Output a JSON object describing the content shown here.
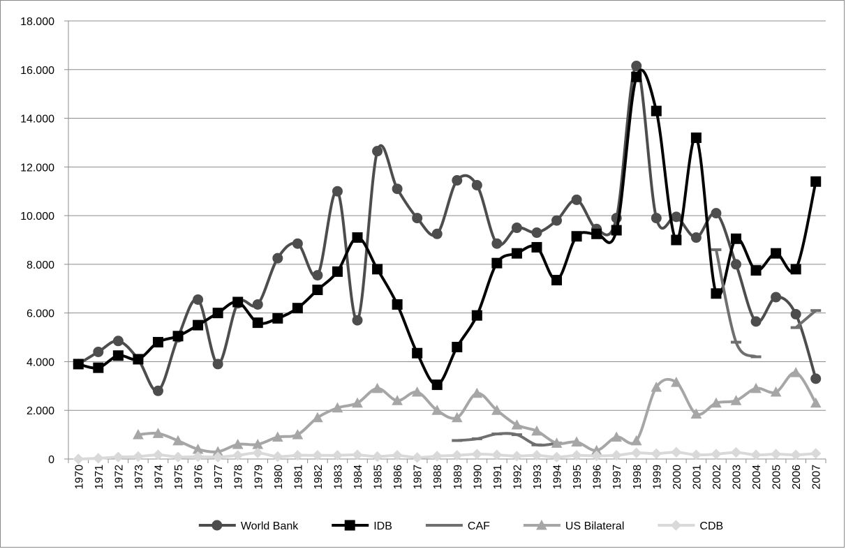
{
  "chart_data": {
    "type": "line",
    "categories": [
      "1970",
      "1971",
      "1972",
      "1973",
      "1974",
      "1975",
      "1976",
      "1977",
      "1978",
      "1979",
      "1980",
      "1981",
      "1982",
      "1983",
      "1984",
      "1985",
      "1986",
      "1987",
      "1988",
      "1989",
      "1990",
      "1991",
      "1992",
      "1993",
      "1994",
      "1995",
      "1996",
      "1997",
      "1998",
      "1999",
      "2000",
      "2001",
      "2002",
      "2003",
      "2004",
      "2005",
      "2006",
      "2007"
    ],
    "series": [
      {
        "name": "World Bank",
        "color": "#4d4d4d",
        "marker": "circle",
        "values": [
          3900,
          4400,
          4850,
          4100,
          2800,
          5000,
          6550,
          3900,
          6400,
          6350,
          8250,
          8850,
          7550,
          11000,
          5700,
          12650,
          11100,
          9900,
          9250,
          11450,
          11250,
          8850,
          9500,
          9300,
          9800,
          10650,
          9450,
          9900,
          16150,
          9900,
          9950,
          9100,
          10100,
          8000,
          5650,
          6650,
          5950,
          3300
        ]
      },
      {
        "name": "IDB",
        "color": "#000000",
        "marker": "square",
        "values": [
          3900,
          3750,
          4250,
          4100,
          4800,
          5050,
          5500,
          6000,
          6450,
          5600,
          5780,
          6200,
          6950,
          7700,
          9100,
          7800,
          6350,
          4350,
          3050,
          4600,
          5900,
          8050,
          8450,
          8700,
          7350,
          9150,
          9250,
          9400,
          15700,
          14300,
          9000,
          13200,
          6800,
          9050,
          7750,
          8450,
          7800,
          11400
        ]
      },
      {
        "name": "CAF",
        "color": "#6f6f6f",
        "marker": "dash",
        "values": [
          null,
          null,
          null,
          null,
          null,
          null,
          null,
          null,
          null,
          null,
          null,
          null,
          null,
          null,
          null,
          null,
          null,
          null,
          null,
          760,
          830,
          1030,
          1000,
          580,
          650,
          null,
          null,
          null,
          null,
          null,
          null,
          null,
          8600,
          4800,
          4200,
          null,
          5400,
          6100
        ]
      },
      {
        "name": "US Bilateral",
        "color": "#a6a6a6",
        "marker": "triangle",
        "values": [
          null,
          null,
          null,
          1000,
          1050,
          750,
          400,
          300,
          600,
          600,
          900,
          1000,
          1700,
          2100,
          2300,
          2900,
          2400,
          2750,
          2000,
          1700,
          2700,
          2000,
          1400,
          1150,
          650,
          700,
          350,
          900,
          750,
          2950,
          3150,
          1850,
          2300,
          2400,
          2900,
          2750,
          3550,
          2300
        ]
      },
      {
        "name": "CDB",
        "color": "#d9d9d9",
        "marker": "diamond",
        "values": [
          0,
          30,
          80,
          100,
          170,
          80,
          100,
          80,
          150,
          250,
          100,
          150,
          150,
          150,
          170,
          100,
          150,
          60,
          120,
          150,
          200,
          170,
          120,
          150,
          80,
          150,
          130,
          150,
          250,
          220,
          280,
          170,
          200,
          270,
          170,
          200,
          170,
          230
        ]
      }
    ],
    "ylim": [
      0,
      18000
    ],
    "yticks": [
      0,
      {
        "value": 2000,
        "label": "2.000"
      },
      {
        "value": 4000,
        "label": "4.000"
      },
      {
        "value": 6000,
        "label": "6.000"
      },
      {
        "value": 8000,
        "label": "8.000"
      },
      {
        "value": 10000,
        "label": "10.000"
      },
      {
        "value": 12000,
        "label": "12.000"
      },
      {
        "value": 14000,
        "label": "14.000"
      },
      {
        "value": 16000,
        "label": "16.000"
      },
      {
        "value": 18000,
        "label": "18.000"
      }
    ],
    "grid": true,
    "legend": "bottom"
  }
}
